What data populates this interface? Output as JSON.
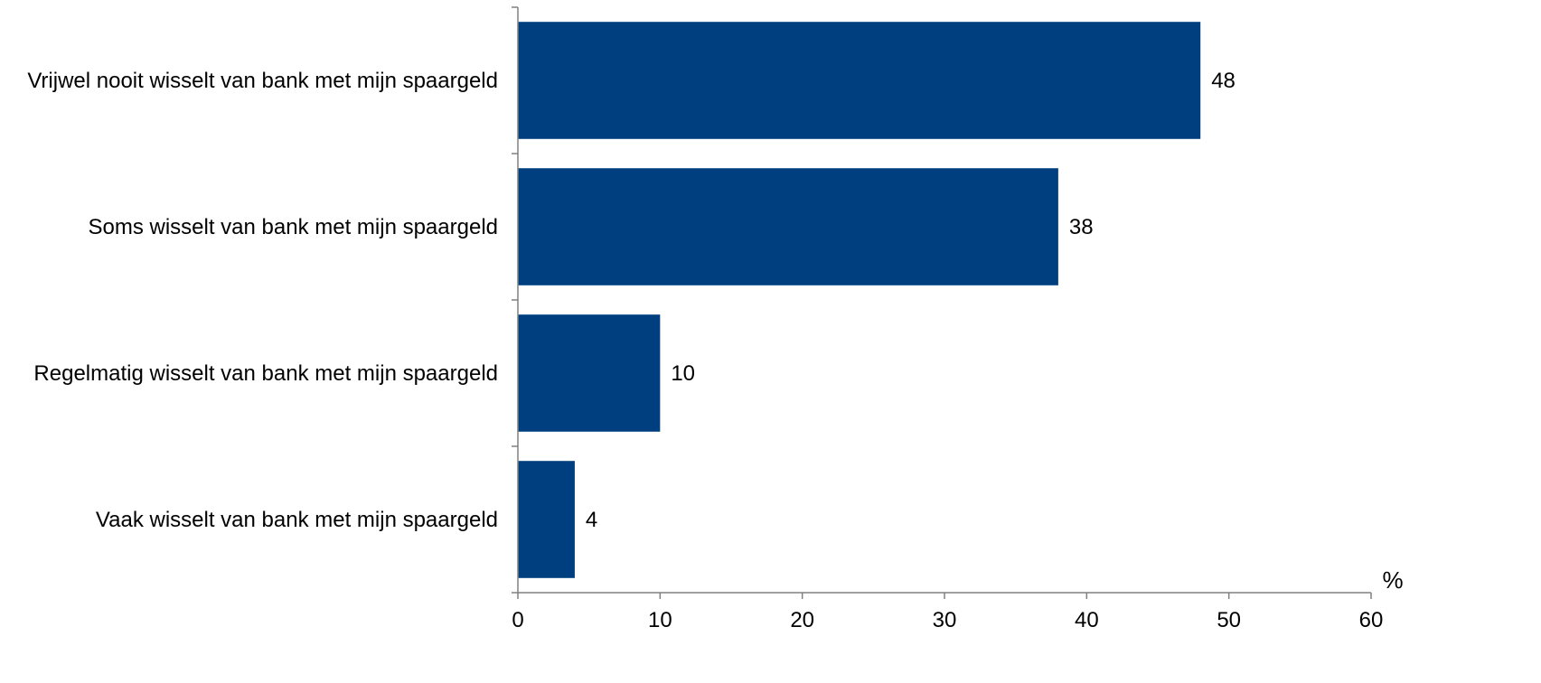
{
  "chart_data": {
    "type": "bar",
    "orientation": "horizontal",
    "categories": [
      "Vrijwel nooit wisselt van bank met mijn spaargeld",
      "Soms wisselt van bank met mijn spaargeld",
      "Regelmatig wisselt van bank met mijn spaargeld",
      "Vaak wisselt van bank met mijn spaargeld"
    ],
    "values": [
      48,
      38,
      10,
      4
    ],
    "data_labels": [
      "48",
      "38",
      "10",
      "4"
    ],
    "xlim": [
      0,
      60
    ],
    "x_ticks": [
      "0",
      "10",
      "20",
      "30",
      "40",
      "50",
      "60"
    ],
    "x_unit": "%",
    "bar_color": "#003F7F",
    "grid": false,
    "legend": "none"
  }
}
